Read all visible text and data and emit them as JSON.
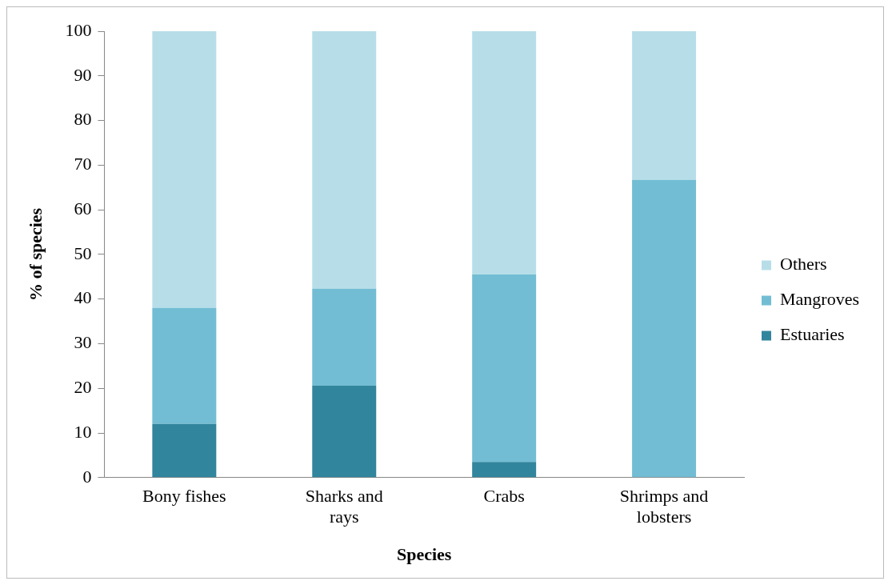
{
  "chart_data": {
    "type": "bar",
    "stacked": true,
    "xlabel": "Species",
    "ylabel": "% of species",
    "categories": [
      "Bony fishes",
      "Sharks and rays",
      "Crabs",
      "Shrimps and lobsters"
    ],
    "series": [
      {
        "name": "Estuaries",
        "color": "#31859c",
        "values": [
          12,
          20.6,
          3.5,
          0
        ]
      },
      {
        "name": "Mangroves",
        "color": "#72bdd3",
        "values": [
          26,
          21.7,
          42,
          66.7
        ]
      },
      {
        "name": "Others",
        "color": "#b7dee8",
        "values": [
          62,
          57.7,
          54.5,
          33.3
        ]
      }
    ],
    "ylim": [
      0,
      100
    ],
    "yticks": [
      0,
      10,
      20,
      30,
      40,
      50,
      60,
      70,
      80,
      90,
      100
    ],
    "grid": false,
    "legend": "right"
  }
}
